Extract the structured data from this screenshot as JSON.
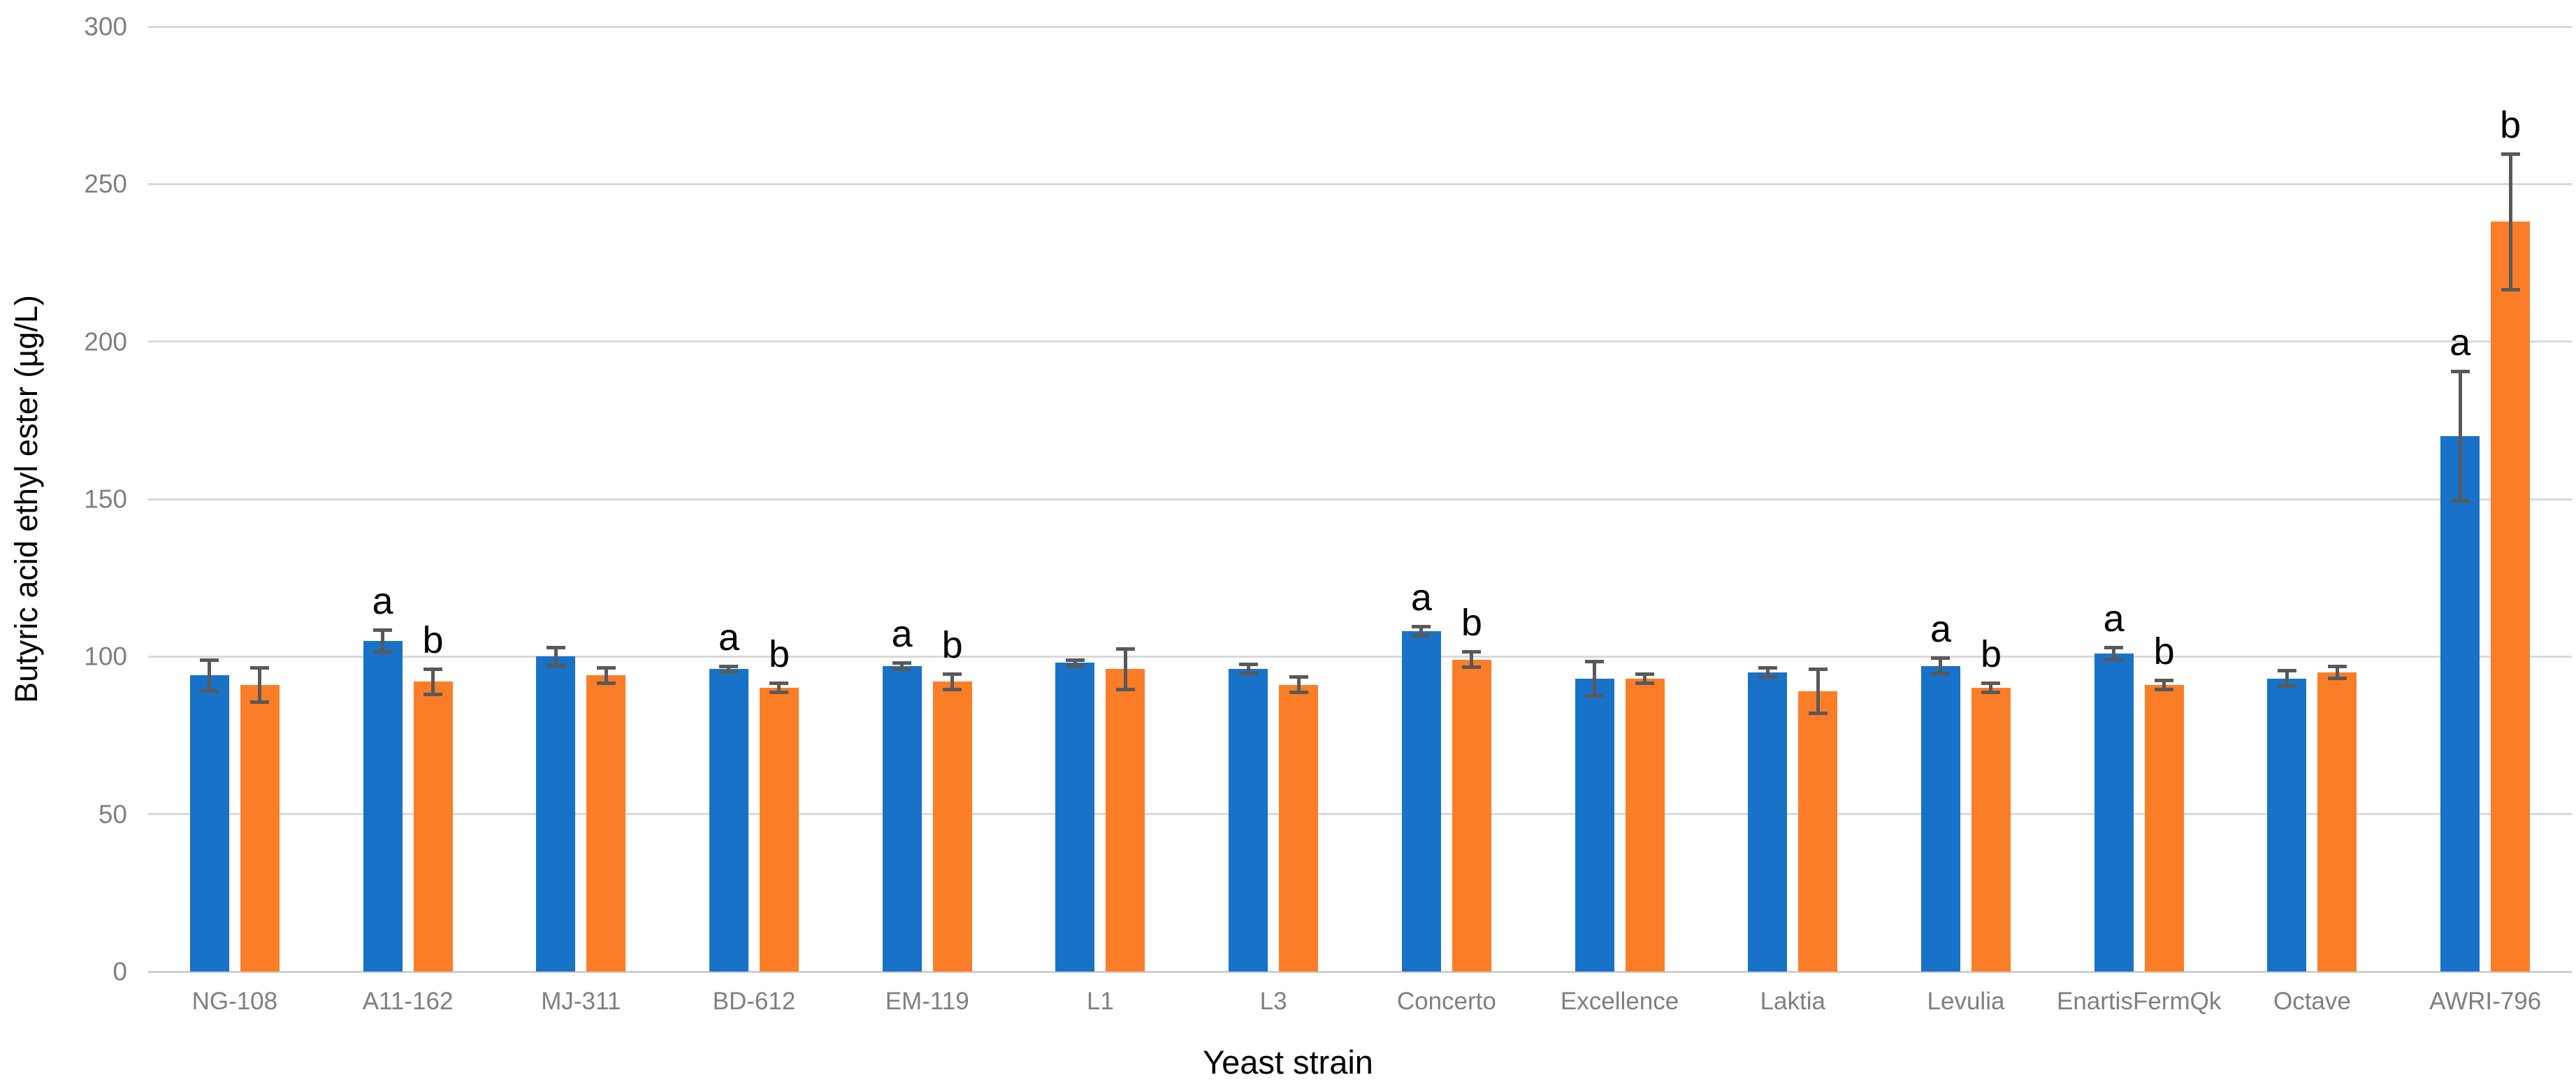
{
  "chart_data": {
    "type": "bar",
    "title": "",
    "xlabel": "Yeast strain",
    "ylabel": "Butyric acid ethyl ester (µg/L)",
    "ylim": [
      0,
      300
    ],
    "yticks": [
      0,
      50,
      100,
      150,
      200,
      250,
      300
    ],
    "grid": true,
    "legend_position": "none",
    "error_bars": true,
    "categories": [
      "NG-108",
      "A11-162",
      "MJ-311",
      "BD-612",
      "EM-119",
      "L1",
      "L3",
      "Concerto",
      "Excellence",
      "Laktia",
      "Levulia",
      "EnartisFermQk",
      "Octave",
      "AWRI-796"
    ],
    "series": [
      {
        "name": "series-1-blue",
        "color": "#1772c8",
        "values": [
          94,
          105,
          100,
          96,
          97,
          98,
          96,
          108,
          93,
          95,
          97,
          101,
          93,
          170
        ],
        "errors": [
          5.5,
          4,
          3.5,
          1.5,
          1.5,
          1.5,
          2,
          2,
          6,
          2,
          3,
          2.5,
          3,
          21
        ],
        "letters": [
          "",
          "a",
          "",
          "a",
          "a",
          "",
          "",
          "a",
          "",
          "",
          "a",
          "a",
          "",
          "a"
        ]
      },
      {
        "name": "series-2-orange",
        "color": "#fc7d27",
        "values": [
          91,
          92,
          94,
          90,
          92,
          96,
          91,
          99,
          93,
          89,
          90,
          91,
          95,
          238
        ],
        "errors": [
          6,
          4.5,
          3,
          2,
          3,
          7,
          3,
          3,
          2,
          7.5,
          2,
          2,
          2.5,
          22
        ],
        "letters": [
          "",
          "b",
          "",
          "b",
          "b",
          "",
          "",
          "b",
          "",
          "",
          "b",
          "b",
          "",
          "b"
        ]
      }
    ],
    "colors": {
      "gridline": "#d9d9d9",
      "axis_line": "#cfcfcf",
      "tick_text": "#7f7f7f",
      "error_bar": "#595959",
      "significance_letter": "#000000"
    }
  }
}
